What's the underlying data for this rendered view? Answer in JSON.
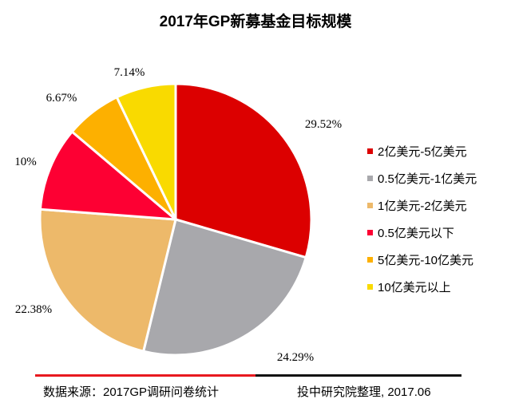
{
  "chart_data": {
    "type": "pie",
    "title": "2017年GP新募基金目标规模",
    "start": "top",
    "direction": "clockwise",
    "legend_position": "right",
    "slices": [
      {
        "label": "2亿美元-5亿美元",
        "value": 29.52,
        "display": "29.52%",
        "color": "#dc0000"
      },
      {
        "label": "0.5亿美元-1亿美元",
        "value": 24.29,
        "display": "24.29%",
        "color": "#a8a8ac"
      },
      {
        "label": "1亿美元-2亿美元",
        "value": 22.38,
        "display": "22.38%",
        "color": "#edb96a"
      },
      {
        "label": "0.5亿美元以下",
        "value": 10,
        "display": "10%",
        "color": "#fd0033"
      },
      {
        "label": "5亿美元-10亿美元",
        "value": 6.67,
        "display": "6.67%",
        "color": "#fdb000"
      },
      {
        "label": "10亿美元以上",
        "value": 7.14,
        "display": "7.14%",
        "color": "#f9da00"
      }
    ]
  },
  "footer": {
    "source": "数据来源：2017GP调研问卷统计",
    "credit": "投中研究院整理, 2017.06"
  }
}
